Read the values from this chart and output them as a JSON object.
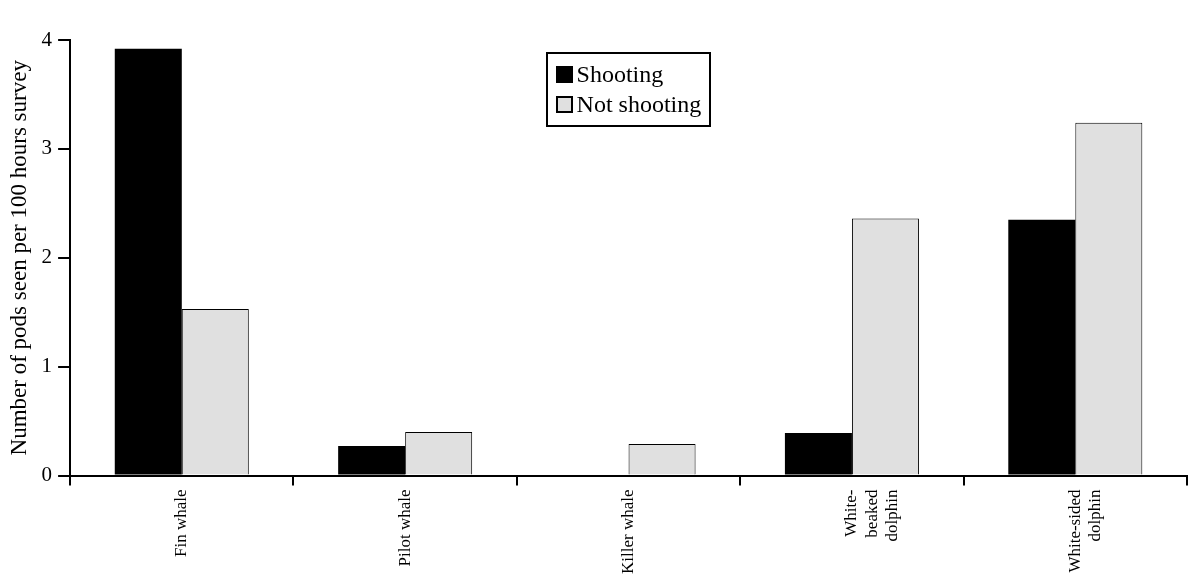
{
  "chart_data": {
    "type": "bar",
    "ylabel": "Number of pods seen per 100 hours survey",
    "categories": [
      "Fin whale",
      "Pilot whale",
      "Killer whale",
      "White-beaked dolphin",
      "White-sided dolphin"
    ],
    "series": [
      {
        "name": "Shooting",
        "color": "#000000",
        "values": [
          3.92,
          0.27,
          null,
          0.39,
          2.35
        ]
      },
      {
        "name": "Not shooting",
        "color": "#e0e0e0",
        "values": [
          1.53,
          0.4,
          0.29,
          2.36,
          3.24
        ]
      }
    ],
    "ylim": [
      0,
      4
    ],
    "yticks": [
      0,
      1,
      2,
      3,
      4
    ],
    "legend": "top",
    "grid": false
  }
}
